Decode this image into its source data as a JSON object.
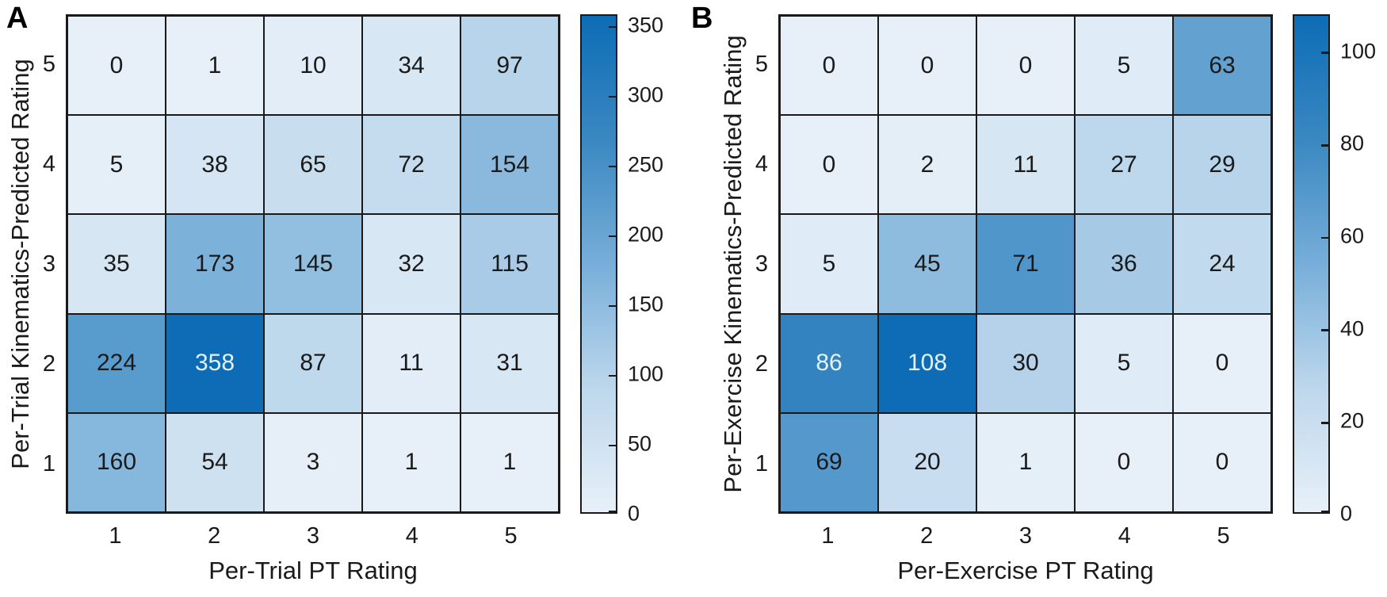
{
  "figure": {
    "background": "#ffffff",
    "text_color": "#1a1a1a",
    "grid_line_color": "#1a1a1a",
    "light_text_color": "#e4f2fb",
    "light_text_threshold": 0.7,
    "colormap": [
      "#e7f0f8",
      "#bdd7ec",
      "#77aed9",
      "#3a88c1",
      "#0d6cb5"
    ]
  },
  "chart_data": [
    {
      "type": "heatmap",
      "panel": "A",
      "xlabel": "Per-Trial PT Rating",
      "ylabel": "Per-Trial Kinematics-Predicted Rating",
      "x_ticks": [
        "1",
        "2",
        "3",
        "4",
        "5"
      ],
      "y_ticks": [
        "5",
        "4",
        "3",
        "2",
        "1"
      ],
      "matrix": [
        [
          0,
          1,
          10,
          34,
          97
        ],
        [
          5,
          38,
          65,
          72,
          154
        ],
        [
          35,
          173,
          145,
          32,
          115
        ],
        [
          224,
          358,
          87,
          11,
          31
        ],
        [
          160,
          54,
          3,
          1,
          1
        ]
      ],
      "vmin": 0,
      "vmax": 358,
      "colorbar_ticks": [
        0,
        50,
        100,
        150,
        200,
        250,
        300,
        350
      ],
      "legend_position": "right",
      "grid": true
    },
    {
      "type": "heatmap",
      "panel": "B",
      "xlabel": "Per-Exercise PT Rating",
      "ylabel": "Per-Exercise Kinematics-Predicted Rating",
      "x_ticks": [
        "1",
        "2",
        "3",
        "4",
        "5"
      ],
      "y_ticks": [
        "5",
        "4",
        "3",
        "2",
        "1"
      ],
      "matrix": [
        [
          0,
          0,
          0,
          5,
          63
        ],
        [
          0,
          2,
          11,
          27,
          29
        ],
        [
          5,
          45,
          71,
          36,
          24
        ],
        [
          86,
          108,
          30,
          5,
          0
        ],
        [
          69,
          20,
          1,
          0,
          0
        ]
      ],
      "vmin": 0,
      "vmax": 108,
      "colorbar_ticks": [
        0,
        20,
        40,
        60,
        80,
        100
      ],
      "legend_position": "right",
      "grid": true
    }
  ]
}
